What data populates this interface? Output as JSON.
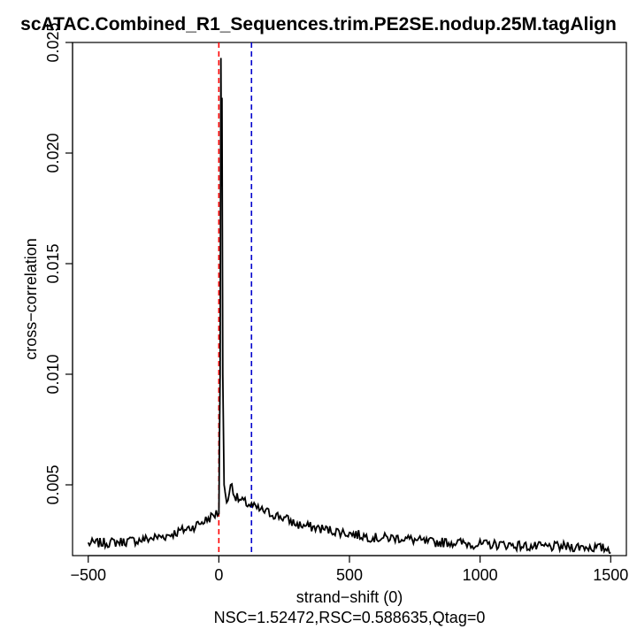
{
  "chart_data": {
    "type": "line",
    "title": "scATAC.Combined_R1_Sequences.trim.PE2SE.nodup.25M.tagAlign",
    "xlabel": "strand−shift (0)",
    "ylabel": "cross−correlation",
    "subtitle": "NSC=1.52472,RSC=0.588635,Qtag=0",
    "xlim": [
      -560,
      1560
    ],
    "ylim": [
      0.0018,
      0.025
    ],
    "x_ticks": [
      -500,
      0,
      500,
      1000,
      1500
    ],
    "x_tick_labels": [
      "−500",
      "0",
      "500",
      "1000",
      "1500"
    ],
    "y_ticks": [
      0.005,
      0.01,
      0.015,
      0.02,
      0.025
    ],
    "y_tick_labels": [
      "0.005",
      "0.010",
      "0.015",
      "0.020",
      "0.025"
    ],
    "line_color": "#000000",
    "vlines": [
      {
        "x": 0,
        "color": "#ff0000",
        "style": "dashed"
      },
      {
        "x": 125,
        "color": "#0000cc",
        "style": "dashed"
      }
    ],
    "series": [
      {
        "x": [
          -500,
          -400,
          -300,
          -200,
          -100,
          -50,
          -10,
          0,
          5,
          8,
          10,
          12,
          15,
          20,
          30,
          50,
          60,
          80,
          100,
          150,
          200,
          250,
          300,
          400,
          500,
          600,
          700,
          800,
          900,
          1000,
          1100,
          1200,
          1300,
          1400,
          1500
        ],
        "values": [
          0.00235,
          0.0024,
          0.0025,
          0.0027,
          0.0031,
          0.0034,
          0.0037,
          0.0037,
          0.01,
          0.0243,
          0.0185,
          0.0225,
          0.01,
          0.005,
          0.0042,
          0.0051,
          0.0045,
          0.0043,
          0.0042,
          0.0039,
          0.0037,
          0.0035,
          0.0032,
          0.003,
          0.0028,
          0.0026,
          0.0026,
          0.0024,
          0.0024,
          0.0023,
          0.0023,
          0.0022,
          0.0022,
          0.0022,
          0.0021
        ]
      }
    ]
  }
}
